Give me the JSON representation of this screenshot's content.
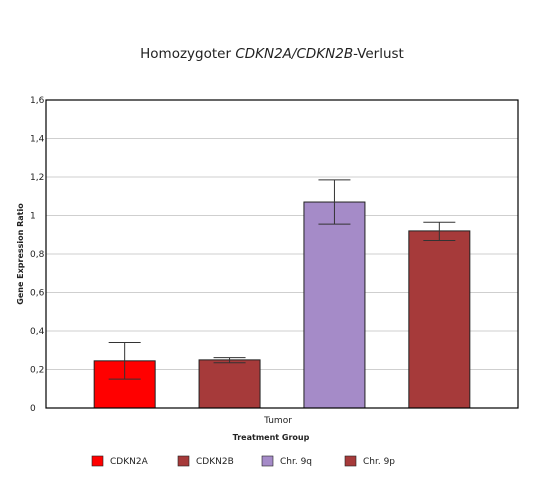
{
  "chart_data": {
    "type": "bar",
    "title": {
      "prefix": "Homozygoter ",
      "italic": "CDKN2A/CDKN2B",
      "suffix": "-Verlust"
    },
    "xlabel": "Treatment Group",
    "ylabel": "Gene Expression Ratio",
    "categories": [
      "Tumor"
    ],
    "ylim": [
      0,
      1.6
    ],
    "yticks": [
      0,
      0.2,
      0.4,
      0.6,
      0.8,
      1,
      1.2,
      1.4,
      1.6
    ],
    "ytick_labels": [
      "0",
      "0,2",
      "0,4",
      "0,6",
      "0,8",
      "1",
      "1,2",
      "1,4",
      "1,6"
    ],
    "grid": true,
    "legend_position": "bottom",
    "series": [
      {
        "name": "CDKN2A",
        "values": [
          0.245
        ],
        "error_low": [
          0.15
        ],
        "error_high": [
          0.34
        ],
        "color": "#ff0000"
      },
      {
        "name": "CDKN2B",
        "values": [
          0.25
        ],
        "error_low": [
          0.235
        ],
        "error_high": [
          0.262
        ],
        "color": "#a63a3a"
      },
      {
        "name": "Chr. 9q",
        "values": [
          1.07
        ],
        "error_low": [
          0.955
        ],
        "error_high": [
          1.185
        ],
        "color": "#a58bc8"
      },
      {
        "name": "Chr. 9p",
        "values": [
          0.92
        ],
        "error_low": [
          0.87
        ],
        "error_high": [
          0.965
        ],
        "color": "#a63a3a"
      }
    ]
  }
}
